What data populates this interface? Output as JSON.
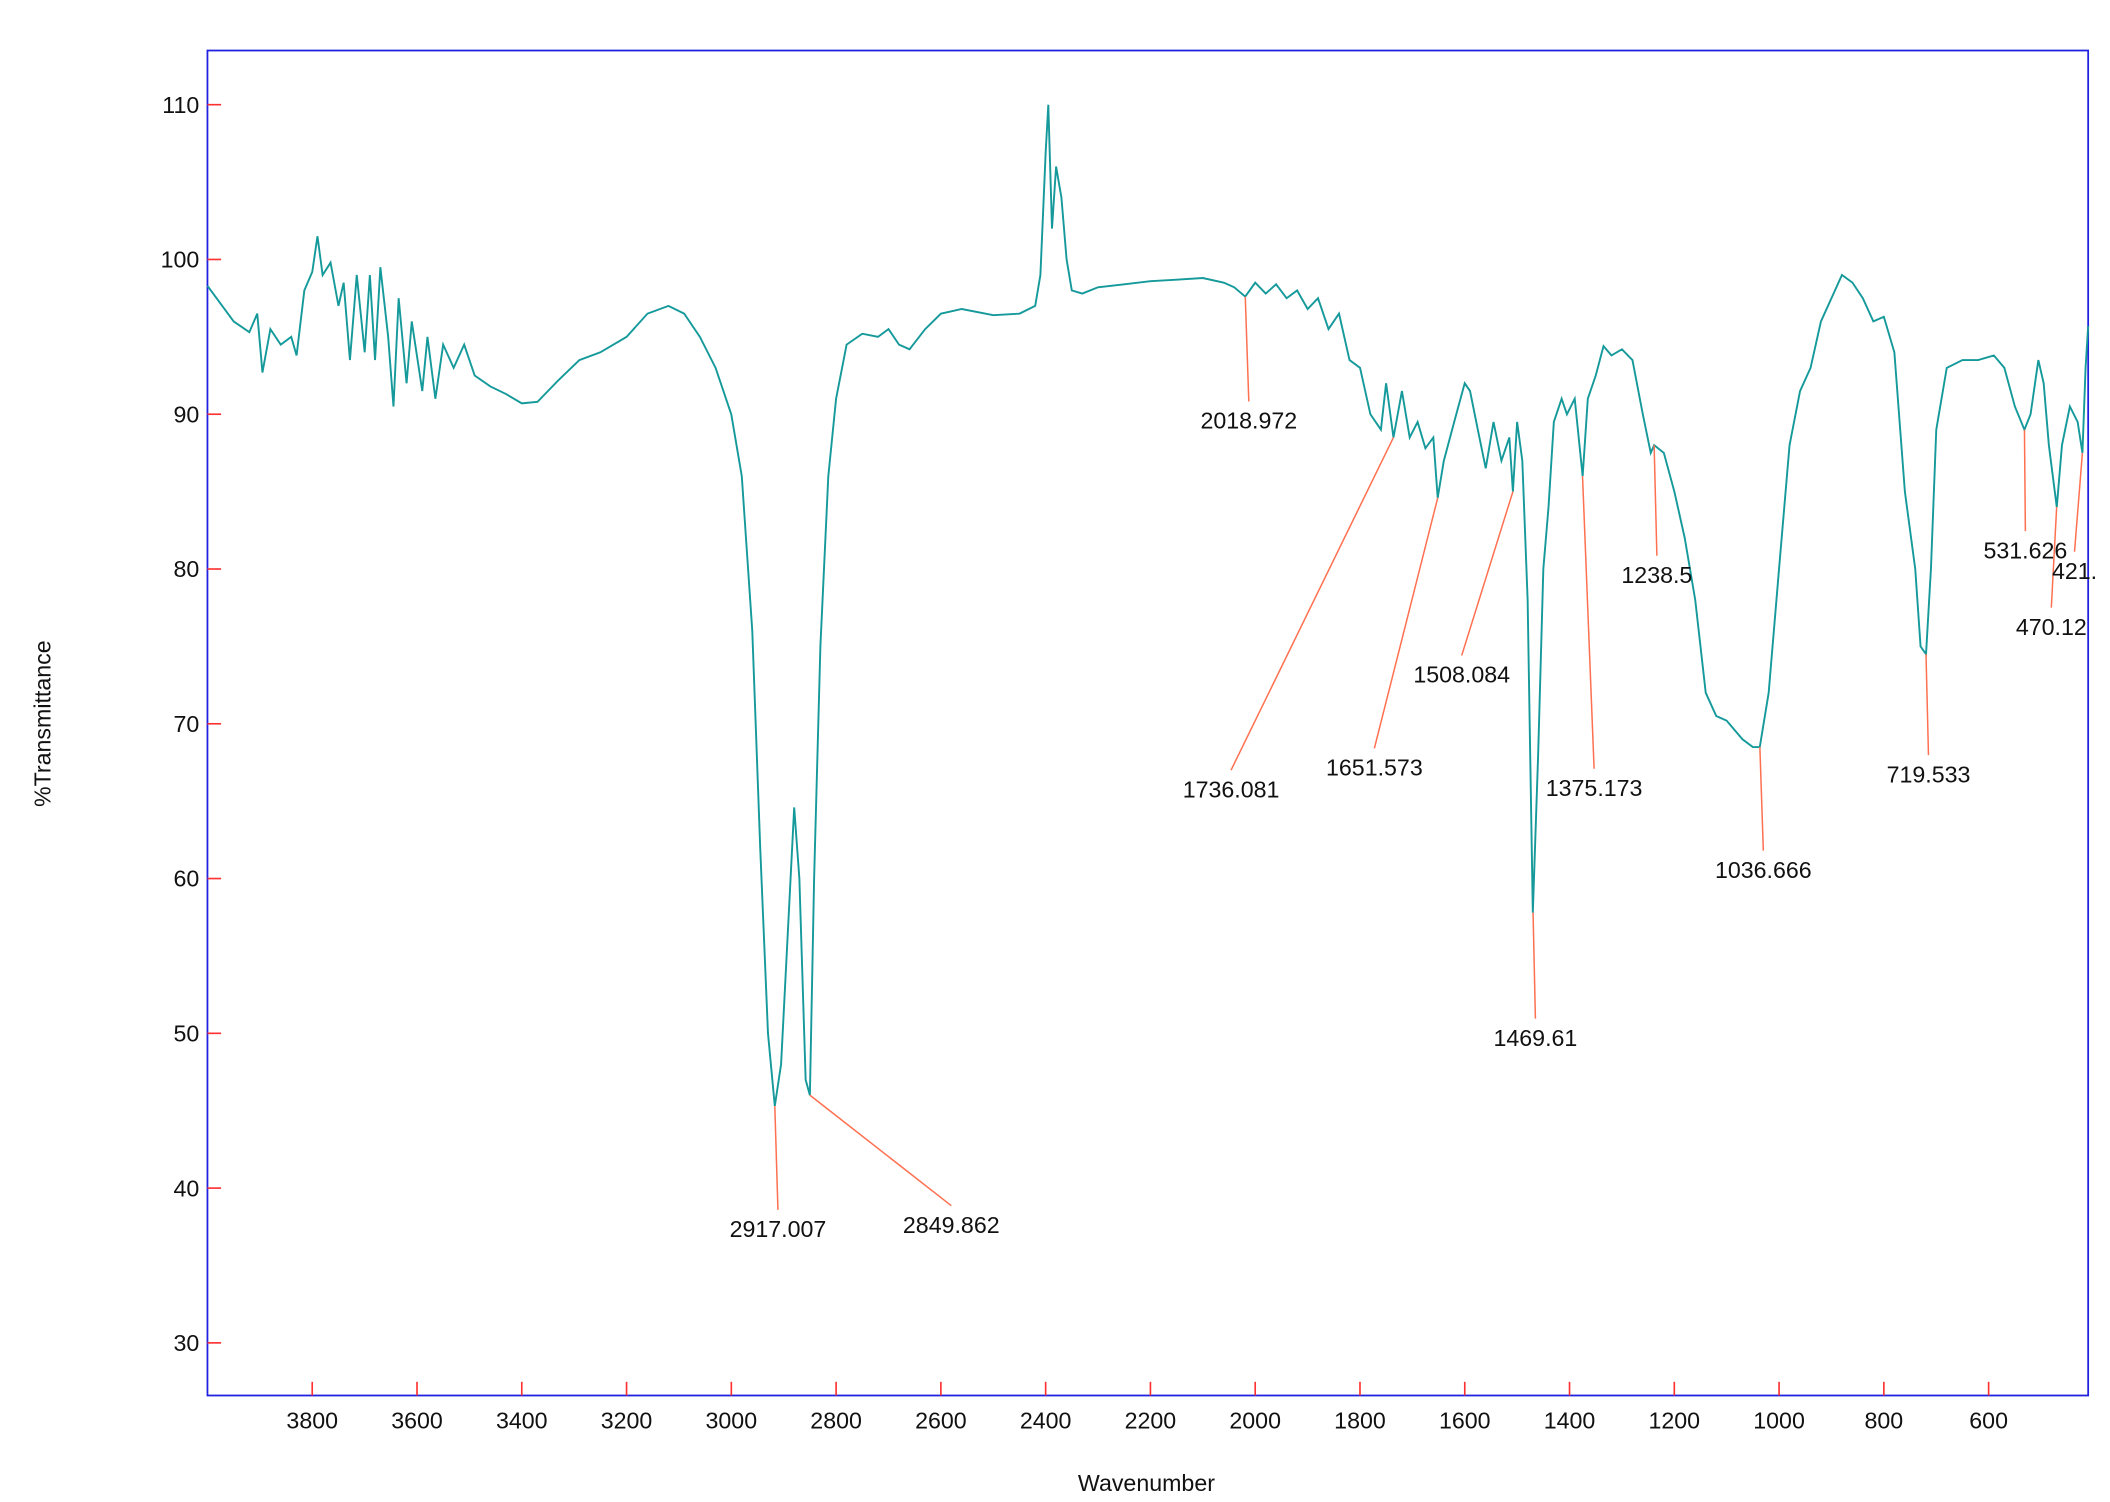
{
  "chart_data": {
    "type": "line",
    "xlabel": "Wavenumber",
    "ylabel": "%Transmittance",
    "xlim": [
      4000,
      410
    ],
    "ylim": [
      26.6,
      113.5
    ],
    "xticks": [
      3800,
      3600,
      3400,
      3200,
      3000,
      2800,
      2600,
      2400,
      2200,
      2000,
      1800,
      1600,
      1400,
      1200,
      1000,
      800,
      600
    ],
    "yticks": [
      30,
      40,
      50,
      60,
      70,
      80,
      90,
      100,
      110
    ],
    "series": [
      {
        "color": "#15999a",
        "x": [
          4000,
          3950,
          3920,
          3905,
          3895,
          3880,
          3860,
          3840,
          3830,
          3815,
          3800,
          3790,
          3780,
          3765,
          3750,
          3740,
          3728,
          3715,
          3700,
          3690,
          3680,
          3670,
          3655,
          3645,
          3635,
          3620,
          3610,
          3590,
          3580,
          3565,
          3550,
          3530,
          3510,
          3490,
          3460,
          3430,
          3400,
          3370,
          3330,
          3290,
          3250,
          3200,
          3160,
          3120,
          3090,
          3060,
          3030,
          3000,
          2980,
          2960,
          2945,
          2930,
          2917,
          2905,
          2890,
          2880,
          2870,
          2858,
          2850,
          2842,
          2830,
          2815,
          2800,
          2780,
          2750,
          2720,
          2700,
          2680,
          2660,
          2630,
          2600,
          2560,
          2500,
          2450,
          2420,
          2410,
          2400,
          2395,
          2388,
          2380,
          2370,
          2360,
          2350,
          2330,
          2300,
          2250,
          2200,
          2150,
          2100,
          2060,
          2040,
          2019,
          2000,
          1980,
          1960,
          1940,
          1920,
          1900,
          1880,
          1860,
          1840,
          1820,
          1800,
          1780,
          1760,
          1750,
          1736,
          1720,
          1705,
          1690,
          1675,
          1660,
          1651.6,
          1640,
          1620,
          1600,
          1590,
          1575,
          1560,
          1545,
          1530,
          1515,
          1508,
          1500,
          1490,
          1480,
          1470,
          1460,
          1450,
          1440,
          1430,
          1415,
          1405,
          1390,
          1375,
          1365,
          1350,
          1335,
          1320,
          1300,
          1280,
          1260,
          1245,
          1238.5,
          1220,
          1200,
          1180,
          1160,
          1140,
          1120,
          1100,
          1070,
          1050,
          1036.7,
          1020,
          1000,
          980,
          960,
          940,
          920,
          900,
          880,
          860,
          840,
          820,
          800,
          780,
          760,
          740,
          730,
          719.5,
          710,
          700,
          680,
          650,
          620,
          590,
          570,
          550,
          531.6,
          520,
          505,
          495,
          485,
          470,
          460,
          445,
          430,
          421,
          415,
          410
        ],
        "values": [
          98.3,
          96,
          95.3,
          96.5,
          92.7,
          95.5,
          94.5,
          95,
          93.8,
          98,
          99.2,
          101.5,
          99,
          99.8,
          97,
          98.5,
          93.5,
          99,
          94,
          99,
          93.5,
          99.5,
          95,
          90.5,
          97.5,
          92,
          96,
          91.5,
          95,
          91,
          94.5,
          93,
          94.5,
          92.5,
          91.8,
          91.3,
          90.7,
          90.8,
          92.2,
          93.5,
          94,
          95,
          96.5,
          97,
          96.5,
          95,
          93,
          90,
          86,
          76,
          62,
          50,
          45.3,
          48,
          58,
          64.6,
          60,
          47,
          46,
          60,
          75,
          86,
          91,
          94.5,
          95.2,
          95,
          95.5,
          94.5,
          94.2,
          95.5,
          96.5,
          96.8,
          96.4,
          96.5,
          97,
          99,
          107,
          110,
          102,
          106,
          104,
          100,
          98,
          97.8,
          98.2,
          98.4,
          98.6,
          98.7,
          98.8,
          98.5,
          98.2,
          97.6,
          98.5,
          97.8,
          98.4,
          97.5,
          98,
          96.8,
          97.5,
          95.5,
          96.5,
          93.5,
          93,
          90,
          89,
          92,
          88.5,
          91.5,
          88.5,
          89.5,
          87.8,
          88.5,
          84.6,
          87,
          89.5,
          92,
          91.5,
          89,
          86.5,
          89.5,
          87,
          88.5,
          85,
          89.5,
          87,
          78,
          57.8,
          68,
          80,
          84,
          89.5,
          91,
          90,
          91,
          86,
          91,
          92.5,
          94.4,
          93.8,
          94.2,
          93.5,
          90,
          87.5,
          88,
          87.5,
          85,
          82,
          78,
          72,
          70.5,
          70.2,
          69,
          68.5,
          68.5,
          72,
          80,
          88,
          91.5,
          93,
          96,
          97.5,
          99,
          98.5,
          97.5,
          96,
          96.3,
          94,
          85,
          80,
          75,
          74.5,
          80,
          89,
          93,
          93.5,
          93.5,
          93.8,
          93,
          90.5,
          89,
          90,
          93.5,
          92,
          88,
          84,
          88,
          90.5,
          89.5,
          87.5,
          93,
          95.7
        ]
      }
    ],
    "annotations": [
      {
        "x": 2917.007,
        "y": 45.3
      },
      {
        "x": 2849.862,
        "y": 46
      },
      {
        "x": 2018.972,
        "y": 97.6
      },
      {
        "x": 1736.081,
        "y": 88.5
      },
      {
        "x": 1651.573,
        "y": 84.6
      },
      {
        "x": 1508.084,
        "y": 85
      },
      {
        "x": 1469.61,
        "y": 57.8
      },
      {
        "x": 1375.173,
        "y": 86
      },
      {
        "x": 1238.5,
        "y": 88
      },
      {
        "x": 1036.666,
        "y": 68.5
      },
      {
        "x": 719.533,
        "y": 74.5
      },
      {
        "x": 531.626,
        "y": 89
      },
      {
        "x": 470.12,
        "y": 84
      },
      {
        "x": 421,
        "y": 87.5,
        "label": "421."
      }
    ]
  }
}
